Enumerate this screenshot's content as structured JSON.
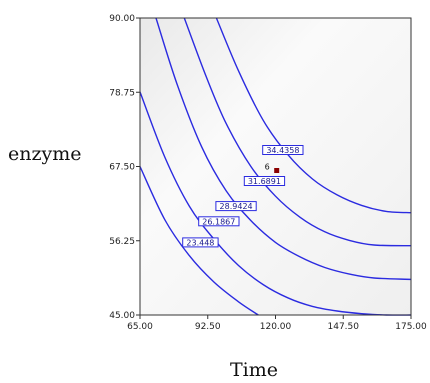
{
  "chart_data": {
    "type": "contour",
    "title": "",
    "xlabel": "Time",
    "ylabel": "enzyme",
    "xlim": [
      65.0,
      175.0
    ],
    "ylim": [
      45.0,
      90.0
    ],
    "x_ticks": [
      "65.00",
      "92.50",
      "120.00",
      "147.50",
      "175.00"
    ],
    "y_ticks": [
      "45.00",
      "56.25",
      "67.50",
      "78.75",
      "90.00"
    ],
    "line_color": "#2b2be0",
    "plot_background": "#f4f4f4",
    "contour_levels": [
      {
        "label": "23.448",
        "label_at": [
          89.5,
          56.0
        ]
      },
      {
        "label": "26.1867",
        "label_at": [
          97.0,
          59.2
        ]
      },
      {
        "label": "28.9424",
        "label_at": [
          104.0,
          61.5
        ]
      },
      {
        "label": "31.6891",
        "label_at": [
          115.5,
          65.3
        ]
      },
      {
        "label": "34.4358",
        "label_at": [
          123.0,
          70.0
        ]
      }
    ],
    "contours": [
      [
        [
          65.0,
          67.5
        ],
        [
          75.0,
          59.5
        ],
        [
          85.0,
          54.0
        ],
        [
          95.0,
          50.0
        ],
        [
          105.0,
          47.0
        ],
        [
          113.0,
          45.0
        ]
      ],
      [
        [
          65.0,
          78.8
        ],
        [
          75.0,
          69.0
        ],
        [
          85.0,
          61.5
        ],
        [
          95.0,
          56.5
        ],
        [
          105.0,
          52.5
        ],
        [
          115.0,
          49.6
        ],
        [
          125.0,
          47.6
        ],
        [
          135.0,
          46.3
        ],
        [
          145.0,
          45.6
        ],
        [
          155.0,
          45.2
        ],
        [
          165.0,
          45.0
        ],
        [
          175.0,
          45.0
        ]
      ],
      [
        [
          71.5,
          90.0
        ],
        [
          80.0,
          80.0
        ],
        [
          90.0,
          70.5
        ],
        [
          100.0,
          63.8
        ],
        [
          110.0,
          59.3
        ],
        [
          120.0,
          56.0
        ],
        [
          130.0,
          53.8
        ],
        [
          140.0,
          52.2
        ],
        [
          150.0,
          51.2
        ],
        [
          160.0,
          50.6
        ],
        [
          175.0,
          50.4
        ]
      ],
      [
        [
          83.0,
          90.0
        ],
        [
          92.0,
          81.0
        ],
        [
          100.0,
          74.0
        ],
        [
          110.0,
          67.5
        ],
        [
          120.0,
          63.0
        ],
        [
          130.0,
          59.8
        ],
        [
          140.0,
          57.6
        ],
        [
          150.0,
          56.3
        ],
        [
          160.0,
          55.6
        ],
        [
          175.0,
          55.5
        ]
      ],
      [
        [
          96.0,
          90.0
        ],
        [
          105.0,
          82.0
        ],
        [
          115.0,
          74.5
        ],
        [
          125.0,
          69.3
        ],
        [
          135.0,
          65.6
        ],
        [
          145.0,
          63.2
        ],
        [
          155.0,
          61.6
        ],
        [
          165.0,
          60.7
        ],
        [
          175.0,
          60.5
        ]
      ]
    ],
    "points": [
      {
        "label": "6",
        "x": 120.5,
        "y": 66.9
      }
    ]
  }
}
